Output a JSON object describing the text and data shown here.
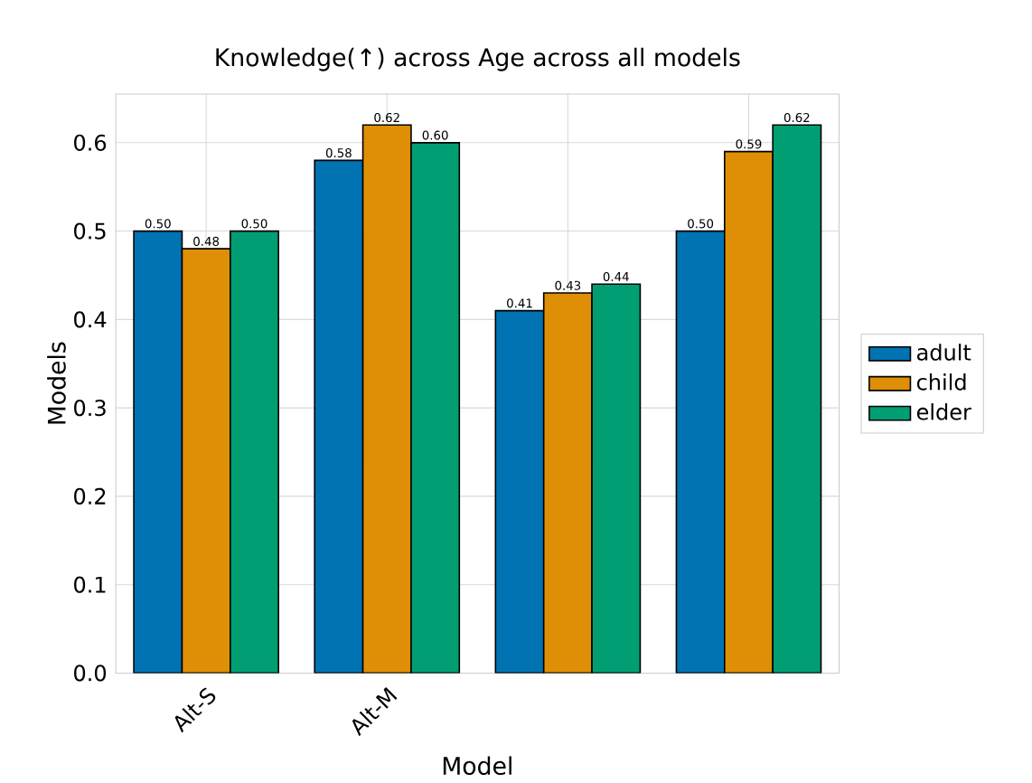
{
  "chart_data": {
    "type": "bar",
    "title": "Knowledge(↑) across Age across all models",
    "xlabel": "Model",
    "ylabel": "Models",
    "categories": [
      "Alt-S",
      "Alt-M",
      null,
      null
    ],
    "series": [
      {
        "name": "adult",
        "color": "#0173b2",
        "values": [
          0.5,
          0.58,
          0.41,
          0.5
        ],
        "value_labels": [
          "0.50",
          "0.58",
          "0.41",
          "0.50"
        ]
      },
      {
        "name": "child",
        "color": "#de8f05",
        "values": [
          0.48,
          0.62,
          0.43,
          0.59
        ],
        "value_labels": [
          "0.48",
          "0.62",
          "0.43",
          "0.59"
        ]
      },
      {
        "name": "elder",
        "color": "#029e73",
        "values": [
          0.5,
          0.6,
          0.44,
          0.62
        ],
        "value_labels": [
          "0.50",
          "0.60",
          "0.44",
          "0.62"
        ]
      }
    ],
    "ylim": [
      0,
      0.655
    ],
    "yticks": [
      {
        "value": 0,
        "label": "0.0"
      },
      {
        "value": 0.1,
        "label": "0.1"
      },
      {
        "value": 0.2,
        "label": "0.2"
      },
      {
        "value": 0.3,
        "label": "0.3"
      },
      {
        "value": 0.4,
        "label": "0.4"
      },
      {
        "value": 0.5,
        "label": "0.5"
      },
      {
        "value": 0.6,
        "label": "0.6"
      }
    ],
    "grid": true,
    "legend": "right"
  }
}
